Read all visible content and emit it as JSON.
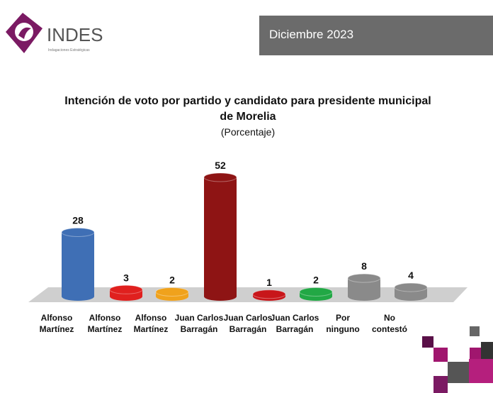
{
  "header": {
    "brand": "INDES",
    "tagline": "Indagaciones Estratégicas",
    "date": "Diciembre 2023"
  },
  "chart_data": {
    "type": "bar",
    "title": "Intención de voto por partido y candidato  para presidente municipal de Morelia",
    "subtitle": "(Porcentaje)",
    "categories": [
      "Alfonso\nMartínez",
      "Alfonso\nMartínez",
      "Alfonso\nMartínez",
      "Juan Carlos\nBarragán",
      "Juan Carlos\nBarragán",
      "Juan Carlos\nBarragán",
      "Por\nninguno",
      "No\ncontestó"
    ],
    "values": [
      28,
      3,
      2,
      52,
      1,
      2,
      8,
      4
    ],
    "colors": [
      "#3f6fb5",
      "#e0201e",
      "#f0a21c",
      "#8e1414",
      "#c8161a",
      "#22a845",
      "#8a8a8a",
      "#8a8a8a"
    ]
  }
}
